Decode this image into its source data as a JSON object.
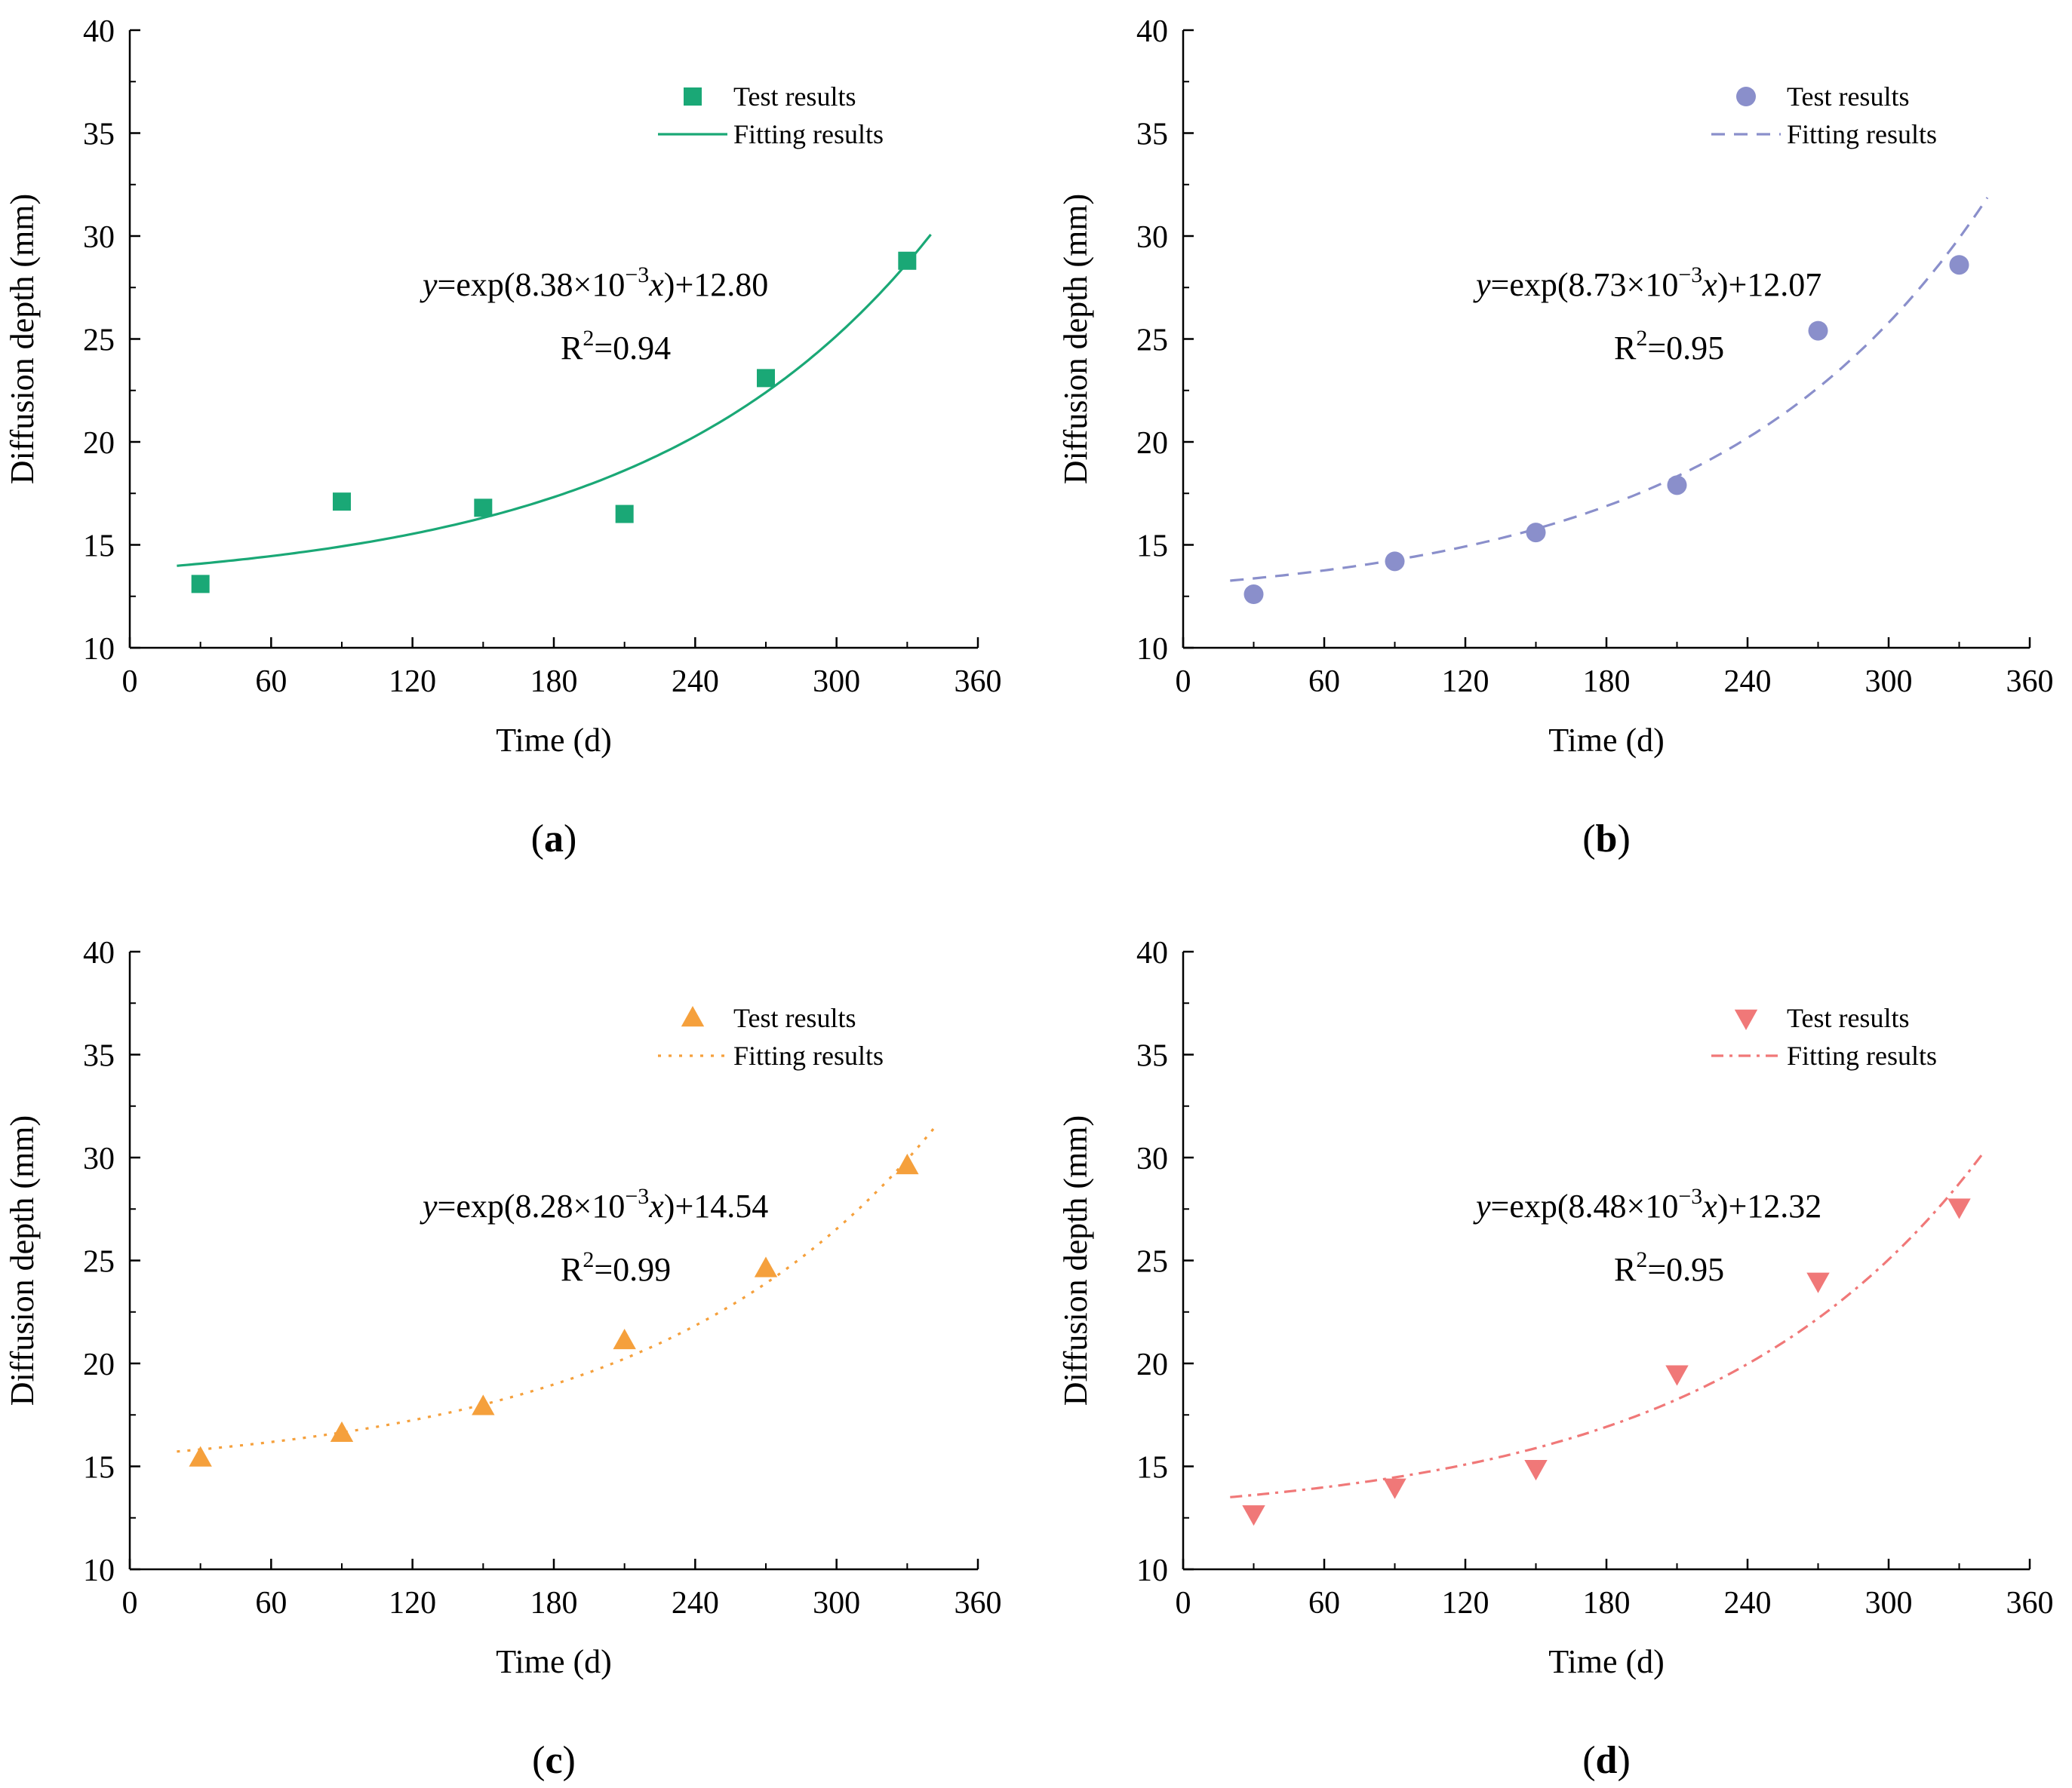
{
  "chart_data": [
    {
      "id": "a",
      "type": "scatter",
      "caption": "(a)",
      "xlabel": "Time (d)",
      "ylabel": "Diffusion depth (mm)",
      "xlim": [
        0,
        360
      ],
      "ylim": [
        10,
        40
      ],
      "xticks": [
        0,
        60,
        120,
        180,
        240,
        300,
        360
      ],
      "yticks": [
        10,
        15,
        20,
        25,
        30,
        35,
        40
      ],
      "color": "#1aa876",
      "marker": "square",
      "line_style": "solid",
      "legend": {
        "test": "Test results",
        "fit": "Fitting results",
        "position": "top-right"
      },
      "equation": {
        "prefix": "y",
        "body": "=exp(8.38×10",
        "exponent": "−3",
        "var": "x",
        "suffix": ")+12.80"
      },
      "r2": {
        "label": "R",
        "exponent": "2",
        "value": "=0.94"
      },
      "fit": {
        "a": 0.00838,
        "c": 12.8,
        "x_range": [
          20,
          340
        ]
      },
      "points": [
        {
          "x": 30,
          "y": 13.1
        },
        {
          "x": 90,
          "y": 17.1
        },
        {
          "x": 150,
          "y": 16.8
        },
        {
          "x": 210,
          "y": 16.5
        },
        {
          "x": 270,
          "y": 23.1
        },
        {
          "x": 330,
          "y": 28.8
        }
      ]
    },
    {
      "id": "b",
      "type": "scatter",
      "caption": "(b)",
      "xlabel": "Time (d)",
      "ylabel": "Diffusion depth (mm)",
      "xlim": [
        0,
        360
      ],
      "ylim": [
        10,
        40
      ],
      "xticks": [
        0,
        60,
        120,
        180,
        240,
        300,
        360
      ],
      "yticks": [
        10,
        15,
        20,
        25,
        30,
        35,
        40
      ],
      "color": "#8a8fcb",
      "marker": "circle",
      "line_style": "dashed",
      "legend": {
        "test": "Test results",
        "fit": "Fitting results",
        "position": "top-right"
      },
      "equation": {
        "prefix": "y",
        "body": "=exp(8.73×10",
        "exponent": "−3",
        "var": "x",
        "suffix": ")+12.07"
      },
      "r2": {
        "label": "R",
        "exponent": "2",
        "value": "=0.95"
      },
      "fit": {
        "a": 0.00873,
        "c": 12.07,
        "x_range": [
          20,
          342
        ]
      },
      "points": [
        {
          "x": 30,
          "y": 12.6
        },
        {
          "x": 90,
          "y": 14.2
        },
        {
          "x": 150,
          "y": 15.6
        },
        {
          "x": 210,
          "y": 17.9
        },
        {
          "x": 270,
          "y": 25.4
        },
        {
          "x": 330,
          "y": 28.6
        }
      ]
    },
    {
      "id": "c",
      "type": "scatter",
      "caption": "(c)",
      "xlabel": "Time (d)",
      "ylabel": "Diffusion depth (mm)",
      "xlim": [
        0,
        360
      ],
      "ylim": [
        10,
        40
      ],
      "xticks": [
        0,
        60,
        120,
        180,
        240,
        300,
        360
      ],
      "yticks": [
        10,
        15,
        20,
        25,
        30,
        35,
        40
      ],
      "color": "#f5a03c",
      "marker": "triangle-up",
      "line_style": "dotted",
      "legend": {
        "test": "Test results",
        "fit": "Fitting results",
        "position": "top-right"
      },
      "equation": {
        "prefix": "y",
        "body": "=exp(8.28×10",
        "exponent": "−3",
        "var": "x",
        "suffix": ")+14.54"
      },
      "r2": {
        "label": "R",
        "exponent": "2",
        "value": "=0.99"
      },
      "fit": {
        "a": 0.00828,
        "c": 14.54,
        "x_range": [
          20,
          342
        ]
      },
      "points": [
        {
          "x": 30,
          "y": 15.4
        },
        {
          "x": 90,
          "y": 16.6
        },
        {
          "x": 150,
          "y": 17.9
        },
        {
          "x": 210,
          "y": 21.1
        },
        {
          "x": 270,
          "y": 24.6
        },
        {
          "x": 330,
          "y": 29.6
        }
      ]
    },
    {
      "id": "d",
      "type": "scatter",
      "caption": "(d)",
      "xlabel": "Time (d)",
      "ylabel": "Diffusion depth (mm)",
      "xlim": [
        0,
        360
      ],
      "ylim": [
        10,
        40
      ],
      "xticks": [
        0,
        60,
        120,
        180,
        240,
        300,
        360
      ],
      "yticks": [
        10,
        15,
        20,
        25,
        30,
        35,
        40
      ],
      "color": "#f07878",
      "marker": "triangle-down",
      "line_style": "dash-dot",
      "legend": {
        "test": "Test results",
        "fit": "Fitting results",
        "position": "top-right"
      },
      "equation": {
        "prefix": "y",
        "body": "=exp(8.48×10",
        "exponent": "−3",
        "var": "x",
        "suffix": ")+12.32"
      },
      "r2": {
        "label": "R",
        "exponent": "2",
        "value": "=0.95"
      },
      "fit": {
        "a": 0.00848,
        "c": 12.32,
        "x_range": [
          20,
          340
        ]
      },
      "points": [
        {
          "x": 30,
          "y": 12.7
        },
        {
          "x": 90,
          "y": 14.0
        },
        {
          "x": 150,
          "y": 14.9
        },
        {
          "x": 210,
          "y": 19.5
        },
        {
          "x": 270,
          "y": 24.0
        },
        {
          "x": 330,
          "y": 27.6
        }
      ]
    }
  ]
}
